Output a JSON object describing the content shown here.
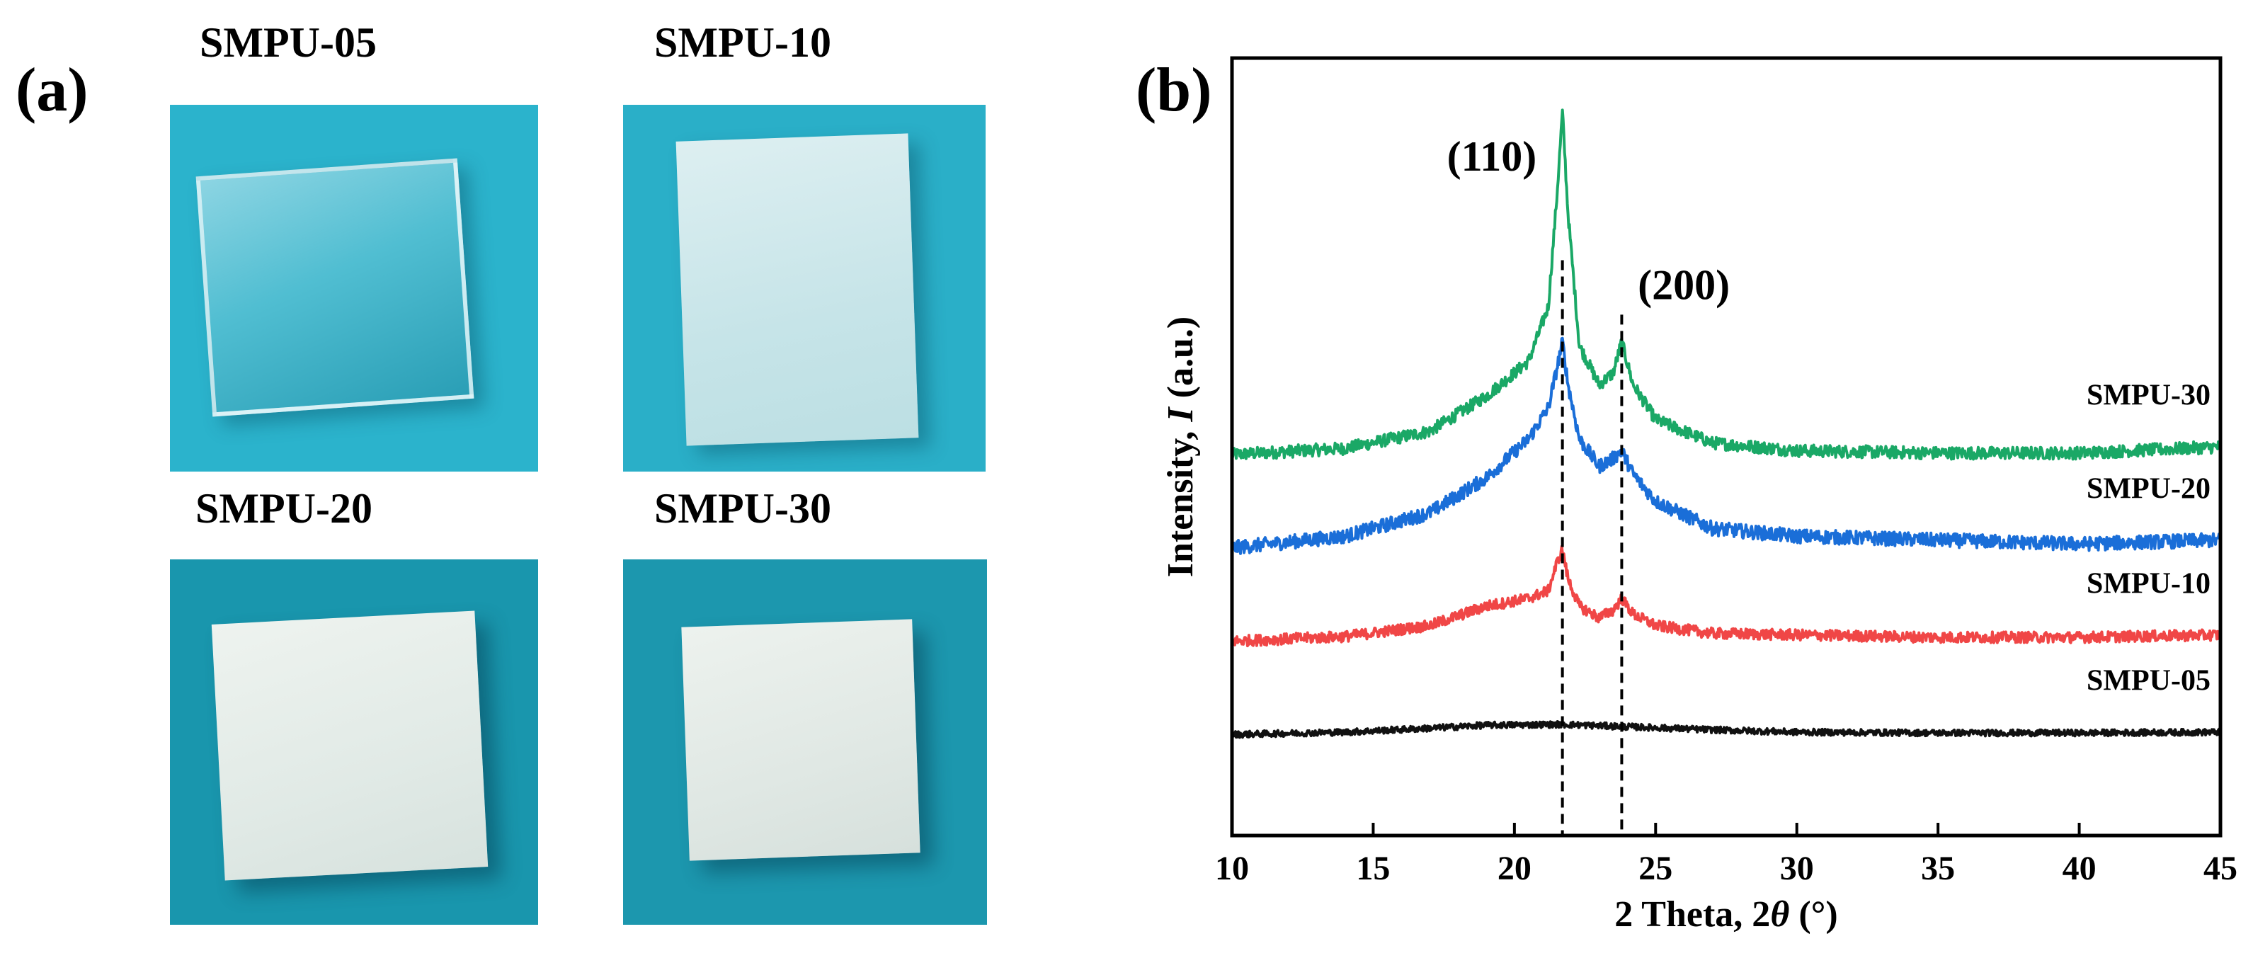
{
  "figure": {
    "panel_a_label": "(a)",
    "panel_b_label": "(b)",
    "samples": [
      {
        "name": "SMPU-05",
        "appearance": "transparent",
        "background_color": "#2bb3cc",
        "sample_color": "#d7ecf1"
      },
      {
        "name": "SMPU-10",
        "appearance": "translucent",
        "background_color": "#2aafc8",
        "sample_color": "#cfe8eb"
      },
      {
        "name": "SMPU-20",
        "appearance": "opaque white",
        "background_color": "#1996ad",
        "sample_color": "#e2ebe8"
      },
      {
        "name": "SMPU-30",
        "appearance": "opaque white",
        "background_color": "#1c97ae",
        "sample_color": "#e0e9e5"
      }
    ]
  },
  "chart_data": {
    "type": "line",
    "title": "",
    "xlabel": "2 Theta, 2θ (°)",
    "xlabel_parts": {
      "main": "2 Theta, 2",
      "italic": "θ",
      "unit": " (°)"
    },
    "ylabel": "Intensity, I (a.u.)",
    "ylabel_parts": {
      "main": "Intensity, ",
      "italic": "I",
      "unit": " (a.u.)"
    },
    "xlim": [
      10,
      45
    ],
    "ylim": [
      0,
      100
    ],
    "xticks": [
      10,
      15,
      20,
      25,
      30,
      35,
      40,
      45
    ],
    "y_ticks_shown": false,
    "grid": false,
    "legend": "none — series labeled at right end",
    "peaks": [
      {
        "label": "(110)",
        "position": 21.7
      },
      {
        "label": "(200)",
        "position": 23.8
      }
    ],
    "series": [
      {
        "name": "SMPU-30",
        "color": "#1aa866",
        "baseline": 48,
        "noise": 0.8,
        "points": [
          [
            10,
            49.0
          ],
          [
            14,
            49.8
          ],
          [
            17,
            52.0
          ],
          [
            19,
            56.5
          ],
          [
            20.5,
            61.0
          ],
          [
            21.2,
            68.0
          ],
          [
            21.5,
            82.0
          ],
          [
            21.7,
            93.0
          ],
          [
            21.9,
            80.0
          ],
          [
            22.3,
            63.0
          ],
          [
            23.0,
            58.0
          ],
          [
            23.5,
            59.5
          ],
          [
            23.8,
            63.5
          ],
          [
            24.2,
            58.0
          ],
          [
            25.0,
            53.5
          ],
          [
            27.0,
            50.5
          ],
          [
            30.0,
            49.5
          ],
          [
            35.0,
            49.2
          ],
          [
            40.0,
            49.2
          ],
          [
            45.0,
            50.0
          ]
        ]
      },
      {
        "name": "SMPU-20",
        "color": "#1a6ed8",
        "baseline": 37,
        "noise": 0.9,
        "points": [
          [
            10,
            37.0
          ],
          [
            14,
            38.5
          ],
          [
            17,
            41.5
          ],
          [
            19,
            46.0
          ],
          [
            20.5,
            51.0
          ],
          [
            21.2,
            55.0
          ],
          [
            21.5,
            60.0
          ],
          [
            21.7,
            63.5
          ],
          [
            21.9,
            58.0
          ],
          [
            22.3,
            51.0
          ],
          [
            23.0,
            47.5
          ],
          [
            23.5,
            48.5
          ],
          [
            23.8,
            49.5
          ],
          [
            24.2,
            46.5
          ],
          [
            25.0,
            43.0
          ],
          [
            27.0,
            39.5
          ],
          [
            30.0,
            38.5
          ],
          [
            35.0,
            38.0
          ],
          [
            40.0,
            37.5
          ],
          [
            45.0,
            38.0
          ]
        ]
      },
      {
        "name": "SMPU-10",
        "color": "#f04646",
        "baseline": 25,
        "noise": 0.7,
        "points": [
          [
            10,
            25.0
          ],
          [
            14,
            25.6
          ],
          [
            17,
            27.0
          ],
          [
            19,
            29.5
          ],
          [
            20.5,
            30.5
          ],
          [
            21.2,
            31.5
          ],
          [
            21.5,
            35.0
          ],
          [
            21.7,
            36.8
          ],
          [
            21.9,
            33.0
          ],
          [
            22.3,
            29.5
          ],
          [
            23.0,
            28.0
          ],
          [
            23.5,
            29.0
          ],
          [
            23.8,
            30.5
          ],
          [
            24.2,
            28.5
          ],
          [
            25.0,
            27.0
          ],
          [
            27.0,
            26.0
          ],
          [
            30.0,
            25.8
          ],
          [
            35.0,
            25.5
          ],
          [
            40.0,
            25.5
          ],
          [
            45.0,
            25.8
          ]
        ]
      },
      {
        "name": "SMPU-05",
        "color": "#111111",
        "baseline": 13,
        "noise": 0.4,
        "points": [
          [
            10,
            13.0
          ],
          [
            14,
            13.3
          ],
          [
            17,
            13.8
          ],
          [
            19,
            14.2
          ],
          [
            21.7,
            14.3
          ],
          [
            24,
            14.0
          ],
          [
            27,
            13.6
          ],
          [
            30,
            13.3
          ],
          [
            35,
            13.2
          ],
          [
            40,
            13.2
          ],
          [
            45,
            13.3
          ]
        ]
      }
    ]
  }
}
